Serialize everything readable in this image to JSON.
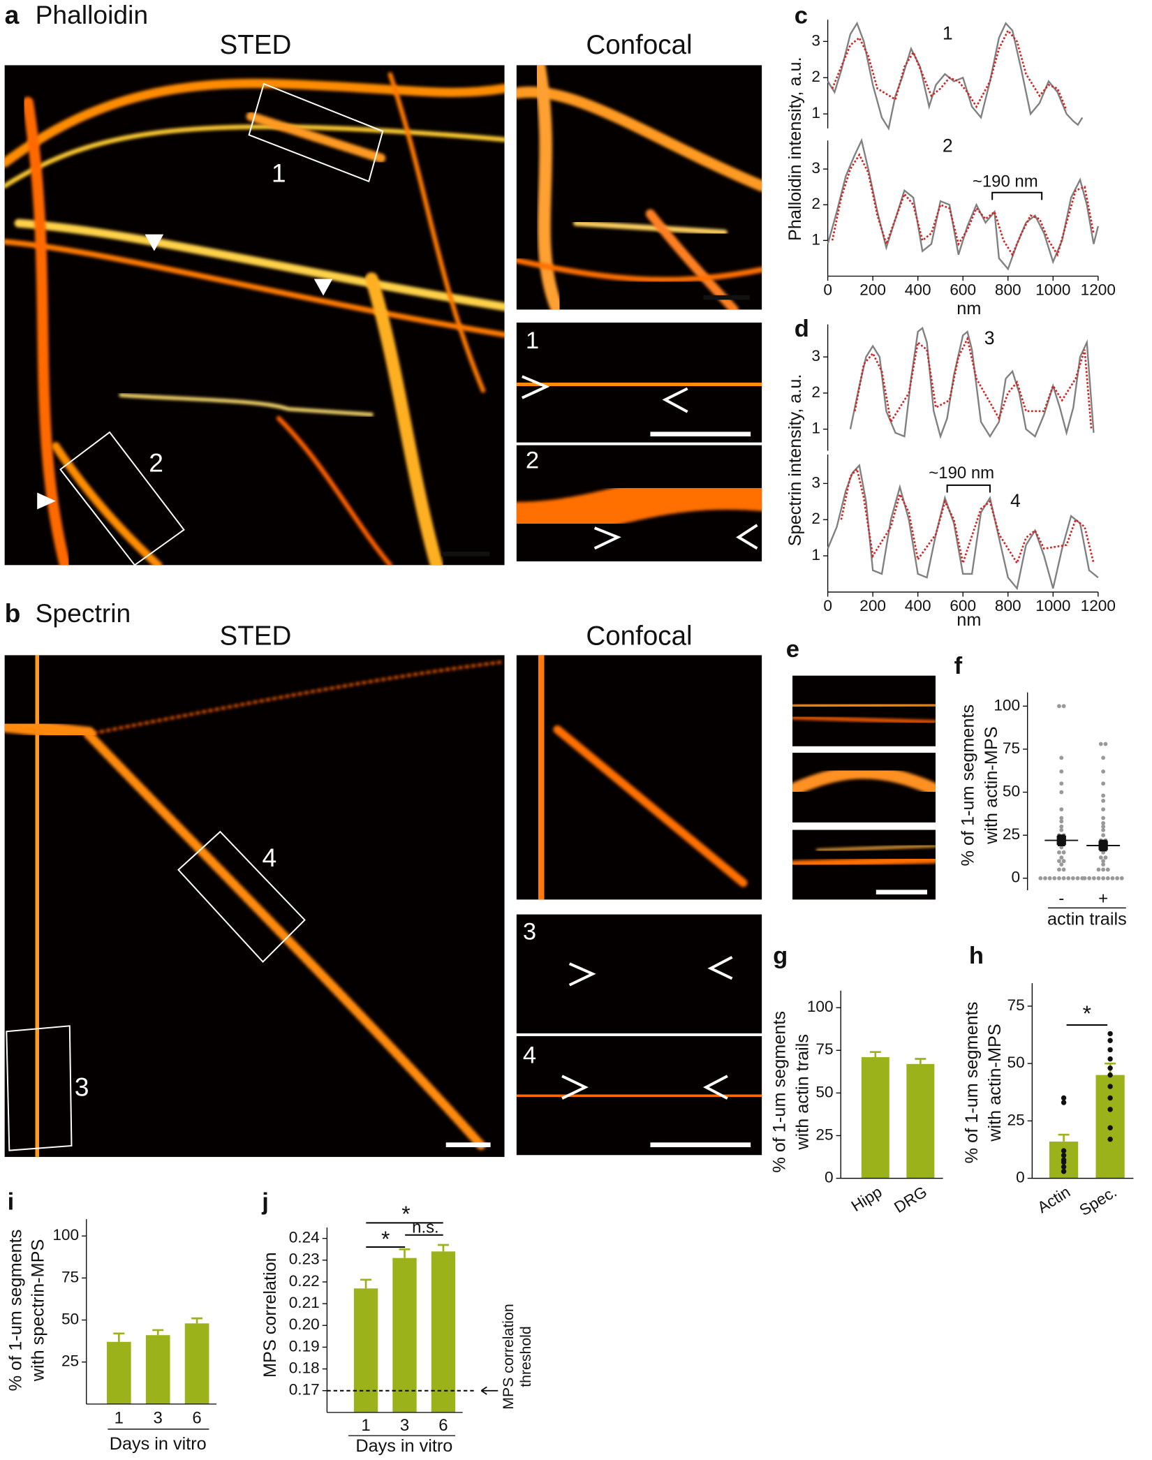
{
  "figure": {
    "a": {
      "letter": "a",
      "title": "Phalloidin",
      "headers": [
        "STED",
        "Confocal"
      ],
      "roi_labels": [
        "1",
        "2"
      ],
      "inset_labels": [
        "1",
        "2"
      ]
    },
    "b": {
      "letter": "b",
      "title": "Spectrin",
      "headers": [
        "STED",
        "Confocal"
      ],
      "roi_labels": [
        "4",
        "3"
      ],
      "inset_labels": [
        "3",
        "4"
      ]
    },
    "e": {
      "letter": "e"
    }
  },
  "chart_data": [
    {
      "type": "line",
      "panel": "c",
      "subtitle": "1",
      "ylabel": [
        "Phalloidin intensity, a.u."
      ],
      "xlim": [
        0,
        1200
      ],
      "ylim": [
        0.6,
        3.6
      ],
      "yticks": [
        1,
        2,
        3
      ],
      "series": [
        {
          "color": "#808080",
          "style": "solid",
          "x": [
            0,
            30,
            60,
            100,
            130,
            160,
            200,
            240,
            270,
            300,
            330,
            370,
            410,
            450,
            480,
            520,
            560,
            600,
            640,
            680,
            720,
            760,
            790,
            820,
            860,
            900,
            940,
            980,
            1020,
            1060,
            1090,
            1110,
            1130
          ],
          "values": [
            1.9,
            1.6,
            2.2,
            3.2,
            3.5,
            3.0,
            1.8,
            0.9,
            0.6,
            1.5,
            2.0,
            2.8,
            2.3,
            1.2,
            1.8,
            2.1,
            1.9,
            2.0,
            1.2,
            0.9,
            1.9,
            3.1,
            3.5,
            3.3,
            2.2,
            1.0,
            1.3,
            1.9,
            1.6,
            1.0,
            0.8,
            0.7,
            0.9
          ]
        },
        {
          "color": "#d62020",
          "style": "dotted",
          "x": [
            20,
            60,
            100,
            140,
            180,
            220,
            300,
            340,
            380,
            420,
            460,
            500,
            540,
            580,
            620,
            660,
            720,
            760,
            800,
            840,
            880,
            940,
            980,
            1020,
            1060
          ],
          "values": [
            1.7,
            2.3,
            2.9,
            3.1,
            2.6,
            1.7,
            1.4,
            2.3,
            2.7,
            2.1,
            1.5,
            1.7,
            2.0,
            1.9,
            1.6,
            1.2,
            1.9,
            2.8,
            3.3,
            3.0,
            2.1,
            1.5,
            1.8,
            1.7,
            1.1
          ]
        }
      ]
    },
    {
      "type": "line",
      "subtitle": "2",
      "xlabel": "nm",
      "annotations": [
        "~190 nm"
      ],
      "xlim": [
        0,
        1200
      ],
      "ylim": [
        0,
        3.8
      ],
      "yticks": [
        1,
        2,
        3
      ],
      "xticks": [
        0,
        200,
        400,
        600,
        800,
        1000,
        1200
      ],
      "series": [
        {
          "color": "#808080",
          "style": "solid",
          "x": [
            0,
            40,
            80,
            120,
            150,
            180,
            220,
            260,
            300,
            340,
            380,
            420,
            460,
            500,
            540,
            580,
            620,
            660,
            700,
            740,
            760,
            800,
            840,
            880,
            920,
            960,
            1000,
            1040,
            1080,
            1120,
            1150,
            1180,
            1200
          ],
          "values": [
            0.9,
            1.8,
            2.8,
            3.4,
            3.8,
            3.0,
            1.8,
            0.8,
            1.6,
            2.4,
            2.2,
            0.7,
            0.9,
            2.1,
            2.0,
            0.6,
            1.4,
            2.0,
            1.5,
            1.8,
            0.5,
            0.2,
            0.9,
            1.5,
            1.7,
            1.2,
            0.4,
            1.0,
            2.2,
            2.7,
            2.0,
            0.9,
            1.4
          ]
        },
        {
          "color": "#d62020",
          "style": "dotted",
          "x": [
            20,
            60,
            100,
            140,
            180,
            220,
            260,
            300,
            340,
            380,
            420,
            460,
            500,
            540,
            580,
            620,
            660,
            700,
            740,
            780,
            820,
            860,
            900,
            940,
            980,
            1020,
            1060,
            1100,
            1140,
            1180
          ],
          "values": [
            1.0,
            2.2,
            3.0,
            3.4,
            2.9,
            1.7,
            0.9,
            1.6,
            2.3,
            2.0,
            1.0,
            1.2,
            2.0,
            1.9,
            0.9,
            1.3,
            1.9,
            1.6,
            1.8,
            1.0,
            0.6,
            1.2,
            1.7,
            1.6,
            1.0,
            0.6,
            1.5,
            2.4,
            2.5,
            1.2
          ]
        }
      ]
    },
    {
      "type": "line",
      "panel": "d",
      "subtitle": "3",
      "ylabel": [
        "Spectrin intensity, a.u."
      ],
      "xlim": [
        0,
        1200
      ],
      "ylim": [
        0.4,
        3.9
      ],
      "yticks": [
        1,
        2,
        3
      ],
      "series": [
        {
          "color": "#808080",
          "style": "solid",
          "x": [
            100,
            140,
            170,
            200,
            230,
            260,
            300,
            340,
            370,
            400,
            420,
            440,
            470,
            500,
            530,
            560,
            600,
            620,
            640,
            680,
            720,
            760,
            790,
            820,
            850,
            880,
            920,
            960,
            1000,
            1030,
            1060,
            1090,
            1120,
            1150,
            1180
          ],
          "values": [
            1.0,
            2.2,
            3.0,
            3.3,
            3.0,
            1.5,
            0.9,
            0.8,
            2.4,
            3.7,
            3.8,
            3.4,
            1.5,
            0.8,
            1.3,
            2.5,
            3.6,
            3.7,
            3.2,
            1.2,
            0.8,
            1.2,
            2.4,
            2.6,
            2.0,
            1.0,
            0.8,
            1.4,
            2.2,
            1.6,
            0.9,
            1.6,
            3.0,
            3.4,
            0.9
          ]
        },
        {
          "color": "#d62020",
          "style": "dotted",
          "x": [
            120,
            160,
            200,
            240,
            280,
            360,
            400,
            440,
            480,
            540,
            580,
            620,
            660,
            760,
            800,
            840,
            880,
            960,
            1000,
            1040,
            1100,
            1140,
            1170
          ],
          "values": [
            1.5,
            2.8,
            3.1,
            2.6,
            1.2,
            2.0,
            3.4,
            3.2,
            1.6,
            1.8,
            3.0,
            3.5,
            2.4,
            1.3,
            2.0,
            2.3,
            1.5,
            1.5,
            2.2,
            1.8,
            2.4,
            3.2,
            1.0
          ]
        }
      ]
    },
    {
      "type": "line",
      "subtitle": "4",
      "xlabel": "nm",
      "annotations": [
        "~190 nm"
      ],
      "xlim": [
        0,
        1200
      ],
      "ylim": [
        0,
        3.8
      ],
      "yticks": [
        1,
        2,
        3
      ],
      "xticks": [
        0,
        200,
        400,
        600,
        800,
        1000,
        1200
      ],
      "series": [
        {
          "color": "#808080",
          "style": "solid",
          "x": [
            0,
            40,
            80,
            110,
            140,
            170,
            200,
            240,
            280,
            320,
            360,
            400,
            440,
            480,
            520,
            560,
            600,
            640,
            680,
            720,
            760,
            800,
            840,
            880,
            920,
            960,
            1000,
            1040,
            1080,
            1120,
            1160,
            1200
          ],
          "values": [
            1.2,
            1.8,
            2.8,
            3.3,
            3.5,
            2.5,
            0.6,
            0.5,
            2.0,
            2.9,
            2.0,
            0.5,
            0.4,
            1.6,
            2.6,
            1.9,
            0.5,
            0.5,
            2.2,
            2.6,
            1.5,
            0.4,
            0.1,
            1.3,
            1.7,
            1.0,
            0.1,
            1.2,
            2.1,
            1.9,
            0.6,
            0.4
          ]
        },
        {
          "color": "#d62020",
          "style": "dotted",
          "x": [
            60,
            100,
            130,
            160,
            200,
            280,
            320,
            360,
            400,
            480,
            520,
            560,
            600,
            680,
            720,
            760,
            840,
            880,
            920,
            960,
            1060,
            1100,
            1140,
            1180
          ],
          "values": [
            2.0,
            3.2,
            3.4,
            2.6,
            1.0,
            1.8,
            2.7,
            2.2,
            0.9,
            1.6,
            2.5,
            2.0,
            0.8,
            2.3,
            2.5,
            1.6,
            0.8,
            1.5,
            1.7,
            1.2,
            1.3,
            2.0,
            1.8,
            0.8
          ]
        }
      ]
    },
    {
      "type": "dot",
      "panel": "f",
      "ylabel": [
        "% of 1-um segments",
        "with actin-MPS"
      ],
      "xlabel": "actin trails",
      "categories": [
        "-",
        "+"
      ],
      "values": [
        22,
        19
      ],
      "errors": [
        3,
        3
      ],
      "color": "#999999",
      "ylim": [
        -7,
        108
      ],
      "yticks": [
        0,
        25,
        50,
        75,
        100
      ],
      "points": [
        [
          100,
          100,
          70,
          62,
          55,
          50,
          40,
          35,
          33,
          30,
          28,
          25,
          25,
          22,
          20,
          20,
          18,
          15,
          15,
          12,
          10,
          10,
          8,
          5,
          5,
          0,
          0,
          0,
          0,
          0,
          0,
          0,
          0,
          0,
          0
        ],
        [
          78,
          78,
          70,
          62,
          55,
          48,
          45,
          40,
          35,
          32,
          30,
          28,
          25,
          22,
          22,
          20,
          18,
          15,
          12,
          12,
          10,
          8,
          5,
          5,
          5,
          0,
          0,
          0,
          0,
          0,
          0,
          0,
          0,
          0
        ]
      ]
    },
    {
      "type": "bar",
      "panel": "g",
      "ylabel": [
        "% of 1-um segments",
        "with actin trails"
      ],
      "categories": [
        "Hipp",
        "DRG"
      ],
      "values": [
        71,
        67
      ],
      "errors": [
        3,
        3
      ],
      "color": "#9bb21a",
      "ylim": [
        0,
        110
      ],
      "yticks": [
        0,
        25,
        50,
        75,
        100
      ]
    },
    {
      "type": "bar",
      "panel": "h",
      "ylabel": [
        "% of 1-um segments",
        "with actin-MPS"
      ],
      "categories": [
        "Actin",
        "Spec."
      ],
      "values": [
        16,
        45
      ],
      "errors": [
        3,
        5
      ],
      "color": "#9bb21a",
      "ylim": [
        0,
        85
      ],
      "yticks": [
        0,
        25,
        50,
        75
      ],
      "annotations": [
        "*"
      ],
      "points": [
        [
          35,
          33,
          12,
          10,
          8,
          7,
          5,
          3
        ],
        [
          63,
          60,
          56,
          52,
          48,
          45,
          40,
          35,
          30,
          22,
          17
        ]
      ]
    },
    {
      "type": "bar",
      "panel": "i",
      "ylabel": [
        "% of 1-um segments",
        "with spectrin-MPS"
      ],
      "xlabel": "Days in vitro",
      "categories": [
        "1",
        "3",
        "6"
      ],
      "values": [
        37,
        41,
        48
      ],
      "errors": [
        5,
        3,
        3
      ],
      "color": "#9bb21a",
      "ylim": [
        0,
        110
      ],
      "yticks": [
        25,
        50,
        75,
        100
      ]
    },
    {
      "type": "bar",
      "panel": "j",
      "ylabel": [
        "MPS correlation"
      ],
      "xlabel": "Days in vitro",
      "categories": [
        "1",
        "3",
        "6"
      ],
      "values": [
        0.217,
        0.231,
        0.234
      ],
      "errors": [
        0.004,
        0.004,
        0.003
      ],
      "color": "#9bb21a",
      "ylim": [
        0.16,
        0.245
      ],
      "yticks": [
        0.17,
        0.18,
        0.19,
        {
          "value": 0.2,
          "label": "0.20"
        },
        0.21,
        0.22,
        0.23,
        0.24
      ],
      "threshold": 0.17,
      "threshold_label": [
        "MPS correlation",
        "threshold"
      ],
      "annotations": [
        "*",
        "*",
        "n.s."
      ]
    }
  ]
}
